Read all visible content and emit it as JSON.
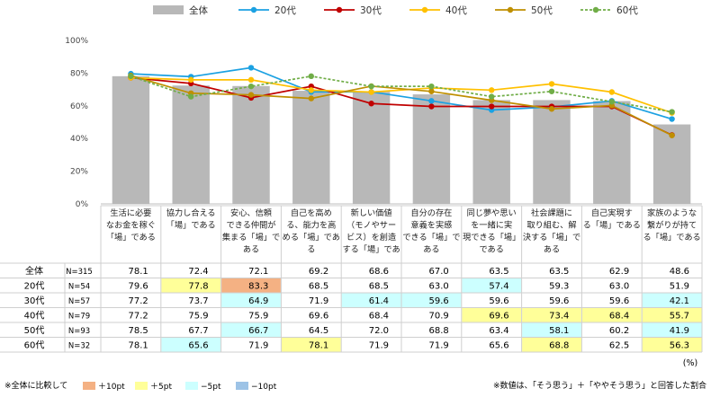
{
  "chart_data": {
    "type": "bar",
    "categories": [
      "生活に必要なお金を稼ぐ「場」である",
      "協力し合える「場」である",
      "安心、信頼できる仲間が集まる「場」である",
      "自己を高める、能力を高める「場」である",
      "新しい価値（モノやサービス）を創造する「場」である",
      "自分の存在意義を実感できる「場」である",
      "同じ夢や思いを一緒に実現できる「場」である",
      "社会課題に取り組む、解決する「場」である",
      "自己実現する「場」である",
      "家族のような繋がりが持てる「場」である"
    ],
    "category_lines": [
      [
        "生活に必要",
        "なお金を稼ぐ",
        "「場」である"
      ],
      [
        "協力し合える",
        "「場」である"
      ],
      [
        "安心、信頼",
        "できる仲間が",
        "集まる「場」で",
        "ある"
      ],
      [
        "自己を高め",
        "る、能力を高",
        "める「場」であ",
        "る"
      ],
      [
        "新しい価値",
        "（モノやサー",
        "ビス）を創造",
        "する「場」であ"
      ],
      [
        "自分の存在",
        "意義を実感",
        "できる「場」で",
        "ある"
      ],
      [
        "同じ夢や思い",
        "を一緒に実",
        "現できる「場」",
        "である"
      ],
      [
        "社会課題に",
        "取り組む、解",
        "決する「場」で",
        "ある"
      ],
      [
        "自己実現す",
        "る「場」である"
      ],
      [
        "家族のような",
        "繋がりが持て",
        "る「場」である"
      ]
    ],
    "ylim": [
      0,
      100
    ],
    "yticks": [
      "0%",
      "20%",
      "40%",
      "60%",
      "80%",
      "100%"
    ],
    "series": [
      {
        "name": "全体",
        "n": "N=315",
        "kind": "bar",
        "color": "#b8b8b8",
        "values": [
          78.1,
          72.4,
          72.1,
          69.2,
          68.6,
          67.0,
          63.5,
          63.5,
          62.9,
          48.6
        ]
      },
      {
        "name": "20代",
        "n": "N=54",
        "kind": "line",
        "color": "#1ba1e2",
        "dash": false,
        "values": [
          79.6,
          77.8,
          83.3,
          68.5,
          68.5,
          63.0,
          57.4,
          59.3,
          63.0,
          51.9
        ]
      },
      {
        "name": "30代",
        "n": "N=57",
        "kind": "line",
        "color": "#c00000",
        "dash": false,
        "values": [
          77.2,
          73.7,
          64.9,
          71.9,
          61.4,
          59.6,
          59.6,
          59.6,
          59.6,
          42.1
        ]
      },
      {
        "name": "40代",
        "n": "N=79",
        "kind": "line",
        "color": "#ffc000",
        "dash": false,
        "values": [
          77.2,
          75.9,
          75.9,
          69.6,
          68.4,
          70.9,
          69.6,
          73.4,
          68.4,
          55.7
        ]
      },
      {
        "name": "50代",
        "n": "N=93",
        "kind": "line",
        "color": "#bf8f00",
        "dash": false,
        "values": [
          78.5,
          67.7,
          66.7,
          64.5,
          72.0,
          68.8,
          63.4,
          58.1,
          60.2,
          41.9
        ]
      },
      {
        "name": "60代",
        "n": "N=32",
        "kind": "line",
        "color": "#70ad47",
        "dash": true,
        "values": [
          78.1,
          65.6,
          71.9,
          78.1,
          71.9,
          71.9,
          65.6,
          68.8,
          62.5,
          56.3
        ]
      }
    ],
    "unit_label": "(%)",
    "highlight_legend": {
      "prefix": "※全体に比較して",
      "items": [
        {
          "label": "＋10pt",
          "color": "#f4b183"
        },
        {
          "label": "＋5pt",
          "color": "#ffff99"
        },
        {
          "label": "−5pt",
          "color": "#ccffff"
        },
        {
          "label": "−10pt",
          "color": "#9dc3e6"
        }
      ]
    },
    "footnote": "※数値は、「そう思う」＋「ややそう思う」と回答した割合"
  }
}
